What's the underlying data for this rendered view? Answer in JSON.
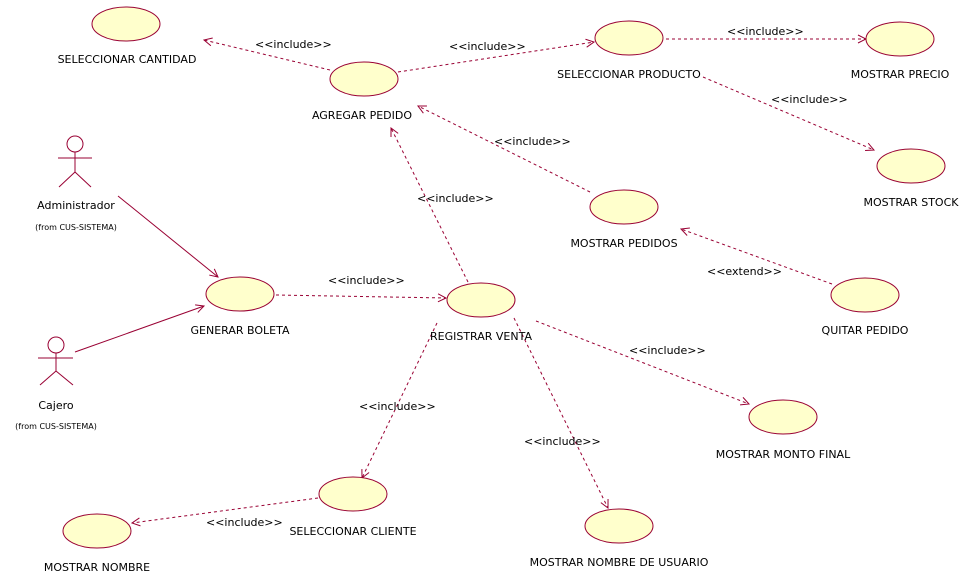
{
  "colors": {
    "ellipse_fill": "#FFFFCC",
    "line": "#990033",
    "text": "#000000",
    "background": "#FFFFFF"
  },
  "actors": {
    "administrador": {
      "name": "Administrador",
      "from": "(from CUS-SISTEMA)"
    },
    "cajero": {
      "name": "Cajero",
      "from": "(from CUS-SISTEMA)"
    }
  },
  "use_cases": {
    "seleccionar_cantidad": "SELECCIONAR CANTIDAD",
    "agregar_pedido": "AGREGAR PEDIDO",
    "seleccionar_producto": "SELECCIONAR PRODUCTO",
    "mostrar_precio": "MOSTRAR PRECIO",
    "mostrar_stock": "MOSTRAR STOCK",
    "mostrar_pedidos": "MOSTRAR PEDIDOS",
    "quitar_pedido": "QUITAR PEDIDO",
    "generar_boleta": "GENERAR BOLETA",
    "registrar_venta": "REGISTRAR VENTA",
    "mostrar_monto_final": "MOSTRAR MONTO FINAL",
    "seleccionar_cliente": "SELECCIONAR CLIENTE",
    "mostrar_nombre": "MOSTRAR NOMBRE",
    "mostrar_nombre_usuario": "MOSTRAR NOMBRE DE USUARIO"
  },
  "relations": {
    "agregar_to_cantidad": "<<include>>",
    "agregar_to_producto": "<<include>>",
    "producto_to_precio": "<<include>>",
    "producto_to_stock": "<<include>>",
    "pedidos_to_agregar": "<<include>>",
    "venta_to_agregar": "<<include>>",
    "quitar_to_pedidos": "<<extend>>",
    "boleta_to_venta": "<<include>>",
    "venta_to_monto": "<<include>>",
    "venta_to_cliente": "<<include>>",
    "venta_to_usuario": "<<include>>",
    "cliente_to_nombre": "<<include>>"
  }
}
